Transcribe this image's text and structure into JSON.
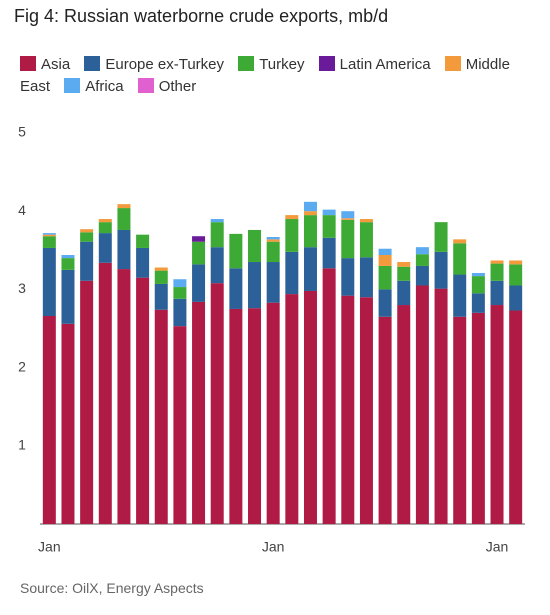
{
  "chart_data": {
    "type": "stacked_bar",
    "title": "Fig 4: Russian waterborne crude exports, mb/d",
    "categories": [
      "Jan",
      null,
      null,
      null,
      null,
      null,
      null,
      null,
      null,
      null,
      null,
      null,
      "Jan",
      null,
      null,
      null,
      null,
      null,
      null,
      null,
      null,
      null,
      null,
      null,
      "Jan",
      null
    ],
    "series": [
      {
        "name": "Asia",
        "color": "#b01b45",
        "values": [
          2.66,
          2.56,
          3.11,
          3.34,
          3.26,
          3.15,
          2.74,
          2.53,
          2.84,
          3.08,
          2.75,
          2.76,
          2.83,
          2.94,
          2.98,
          3.27,
          2.92,
          2.9,
          2.65,
          2.8,
          3.05,
          3.01,
          2.65,
          2.7,
          2.8,
          2.73
        ]
      },
      {
        "name": "Europe ex-Turkey",
        "color": "#2b6198",
        "values": [
          0.87,
          0.69,
          0.5,
          0.38,
          0.5,
          0.38,
          0.33,
          0.35,
          0.48,
          0.46,
          0.52,
          0.59,
          0.52,
          0.54,
          0.56,
          0.39,
          0.48,
          0.51,
          0.35,
          0.31,
          0.25,
          0.47,
          0.54,
          0.25,
          0.31,
          0.32
        ]
      },
      {
        "name": "Turkey",
        "color": "#3daa35",
        "values": [
          0.15,
          0.15,
          0.12,
          0.14,
          0.28,
          0.17,
          0.17,
          0.15,
          0.29,
          0.32,
          0.44,
          0.41,
          0.26,
          0.42,
          0.41,
          0.29,
          0.49,
          0.45,
          0.3,
          0.18,
          0.15,
          0.38,
          0.4,
          0.22,
          0.22,
          0.27
        ]
      },
      {
        "name": "Latin America",
        "color": "#6a1b9a",
        "values": [
          0,
          0,
          0,
          0,
          0,
          0,
          0,
          0,
          0.07,
          0,
          0,
          0,
          0,
          0,
          0,
          0,
          0,
          0,
          0,
          0,
          0,
          0,
          0,
          0,
          0,
          0
        ]
      },
      {
        "name": "Middle East",
        "color": "#f39a3c",
        "values": [
          0.02,
          0,
          0.04,
          0.04,
          0.05,
          0,
          0.04,
          0,
          0,
          0,
          0,
          0,
          0.03,
          0.05,
          0.05,
          0,
          0.02,
          0.04,
          0.14,
          0.06,
          0,
          0,
          0.05,
          0,
          0.04,
          0.05
        ]
      },
      {
        "name": "Africa",
        "color": "#5aabf0",
        "values": [
          0.02,
          0.04,
          0,
          0,
          0,
          0,
          0,
          0.1,
          0,
          0.04,
          0,
          0,
          0.03,
          0,
          0.12,
          0.07,
          0.09,
          0,
          0.08,
          0,
          0.09,
          0,
          0,
          0.04,
          0,
          0
        ]
      },
      {
        "name": "Other",
        "color": "#e060d0",
        "values": [
          0,
          0,
          0,
          0,
          0,
          0,
          0,
          0,
          0,
          0,
          0,
          0,
          0,
          0,
          0,
          0,
          0,
          0,
          0,
          0,
          0,
          0,
          0,
          0,
          0,
          0
        ]
      }
    ],
    "ylim": [
      0,
      5
    ],
    "yticks": [
      1,
      2,
      3,
      4,
      5
    ],
    "grid": false,
    "source": "Source: OilX, Energy Aspects"
  }
}
